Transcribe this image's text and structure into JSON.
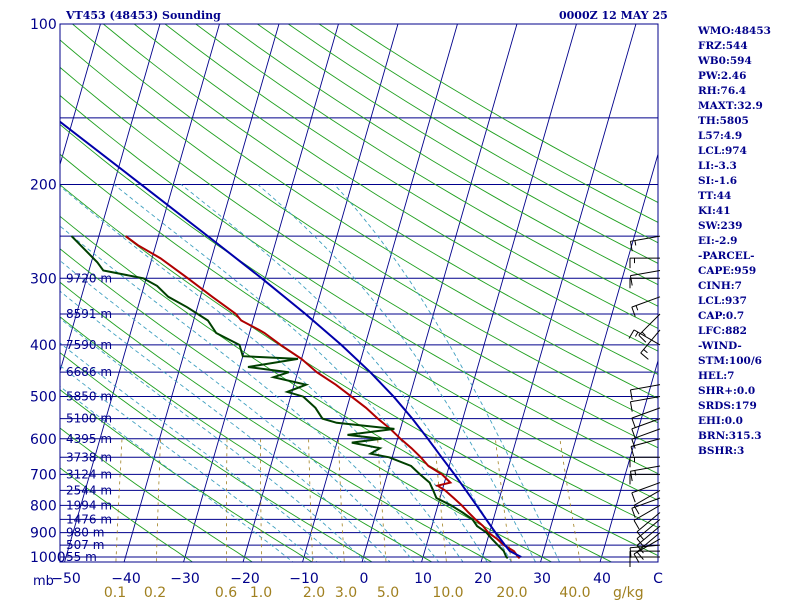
{
  "header": {
    "station": "VT453 (48453) Sounding",
    "time": "0000Z 12 MAY 25"
  },
  "indices": [
    "WMO:48453",
    "FRZ:544",
    "WB0:594",
    "PW:2.46",
    "RH:76.4",
    "MAXT:32.9",
    "TH:5805",
    "L57:4.9",
    "LCL:974",
    "LI:-3.3",
    "SI:-1.6",
    "TT:44",
    "KI:41",
    "SW:239",
    "EI:-2.9",
    "-PARCEL-",
    "CAPE:959",
    "CINH:7",
    "LCL:937",
    "CAP:0.7",
    "LFC:882",
    "-WIND-",
    "STM:100/6",
    "HEL:7",
    "SHR+:0.0",
    "SRDS:179",
    "EHI:0.0",
    "BRN:315.3",
    "BSHR:3"
  ],
  "chart_data": {
    "type": "line",
    "title": "VT453 (48453) Sounding",
    "x_unit_label": "mb",
    "pressure_ticks": [
      "100",
      "200",
      "300",
      "400",
      "500",
      "600",
      "700",
      "800",
      "900",
      "1000"
    ],
    "temperature_ticks": [
      "−50",
      "−40",
      "−30",
      "−20",
      "−10",
      "0",
      "10",
      "20",
      "30",
      "40",
      "C"
    ],
    "mixing_ratio_ticks": [
      "0.1",
      "0.2",
      "0.6",
      "1.0",
      "2.0",
      "3.0",
      "5.0",
      "10.0",
      "20.0",
      "40.0"
    ],
    "mixing_ratio_unit": "g/kg",
    "temperature_range": [
      -50,
      50
    ],
    "pressure_range": [
      100,
      1050
    ],
    "height_labels": [
      {
        "p": 300,
        "text": "9720 m"
      },
      {
        "p": 350,
        "text": "8591 m"
      },
      {
        "p": 400,
        "text": "7590 m"
      },
      {
        "p": 450,
        "text": "6686 m"
      },
      {
        "p": 500,
        "text": "5850 m"
      },
      {
        "p": 550,
        "text": "5100 m"
      },
      {
        "p": 600,
        "text": "4395 m"
      },
      {
        "p": 650,
        "text": "3738 m"
      },
      {
        "p": 700,
        "text": "3124 m"
      },
      {
        "p": 750,
        "text": "2544 m"
      },
      {
        "p": 800,
        "text": "1994 m"
      },
      {
        "p": 850,
        "text": "1476 m"
      },
      {
        "p": 900,
        "text": "980 m"
      },
      {
        "p": 950,
        "text": "507 m"
      },
      {
        "p": 1000,
        "text": "55 m"
      }
    ],
    "series": [
      {
        "color": "#b00000",
        "values": [
          {
            "p": 1005,
            "t": 26.3
          },
          {
            "p": 1000,
            "t": 26.0
          },
          {
            "p": 975,
            "t": 25.0
          },
          {
            "p": 950,
            "t": 23.0
          },
          {
            "p": 925,
            "t": 21.6
          },
          {
            "p": 900,
            "t": 19.8
          },
          {
            "p": 875,
            "t": 18.6
          },
          {
            "p": 850,
            "t": 17.0
          },
          {
            "p": 825,
            "t": 15.5
          },
          {
            "p": 800,
            "t": 14.0
          },
          {
            "p": 775,
            "t": 12.3
          },
          {
            "p": 750,
            "t": 10.5
          },
          {
            "p": 735,
            "t": 9.0
          },
          {
            "p": 725,
            "t": 11.0
          },
          {
            "p": 700,
            "t": 9.2
          },
          {
            "p": 675,
            "t": 6.5
          },
          {
            "p": 650,
            "t": 4.8
          },
          {
            "p": 625,
            "t": 2.8
          },
          {
            "p": 600,
            "t": 0.5
          },
          {
            "p": 575,
            "t": -1.7
          },
          {
            "p": 550,
            "t": -4.3
          },
          {
            "p": 525,
            "t": -6.8
          },
          {
            "p": 500,
            "t": -9.8
          },
          {
            "p": 475,
            "t": -13.0
          },
          {
            "p": 450,
            "t": -16.8
          },
          {
            "p": 425,
            "t": -20.0
          },
          {
            "p": 400,
            "t": -24.2
          },
          {
            "p": 380,
            "t": -27.5
          },
          {
            "p": 375,
            "t": -28.5
          },
          {
            "p": 360,
            "t": -32.0
          },
          {
            "p": 350,
            "t": -33.2
          },
          {
            "p": 325,
            "t": -38.0
          },
          {
            "p": 300,
            "t": -43.0
          },
          {
            "p": 275,
            "t": -48.6
          },
          {
            "p": 260,
            "t": -53.0
          },
          {
            "p": 250,
            "t": -55.5
          }
        ]
      },
      {
        "color": "#004000",
        "values": [
          {
            "p": 1005,
            "t": 24.3
          },
          {
            "p": 1000,
            "t": 24.0
          },
          {
            "p": 975,
            "t": 23.3
          },
          {
            "p": 950,
            "t": 22.0
          },
          {
            "p": 925,
            "t": 20.7
          },
          {
            "p": 900,
            "t": 19.5
          },
          {
            "p": 875,
            "t": 17.6
          },
          {
            "p": 850,
            "t": 16.5
          },
          {
            "p": 825,
            "t": 14.5
          },
          {
            "p": 800,
            "t": 12.2
          },
          {
            "p": 775,
            "t": 9.4
          },
          {
            "p": 750,
            "t": 8.5
          },
          {
            "p": 725,
            "t": 7.5
          },
          {
            "p": 700,
            "t": 5.5
          },
          {
            "p": 675,
            "t": 3.6
          },
          {
            "p": 650,
            "t": -0.5
          },
          {
            "p": 640,
            "t": -3.8
          },
          {
            "p": 625,
            "t": -2.5
          },
          {
            "p": 610,
            "t": -7.5
          },
          {
            "p": 600,
            "t": -2.7
          },
          {
            "p": 590,
            "t": -8.6
          },
          {
            "p": 575,
            "t": -1.0
          },
          {
            "p": 560,
            "t": -11.0
          },
          {
            "p": 550,
            "t": -13.6
          },
          {
            "p": 525,
            "t": -15.3
          },
          {
            "p": 500,
            "t": -17.9
          },
          {
            "p": 490,
            "t": -20.8
          },
          {
            "p": 475,
            "t": -18.0
          },
          {
            "p": 460,
            "t": -23.8
          },
          {
            "p": 450,
            "t": -21.5
          },
          {
            "p": 440,
            "t": -28.6
          },
          {
            "p": 425,
            "t": -20.6
          },
          {
            "p": 420,
            "t": -30.0
          },
          {
            "p": 400,
            "t": -31.1
          },
          {
            "p": 380,
            "t": -35.6
          },
          {
            "p": 360,
            "t": -37.6
          },
          {
            "p": 340,
            "t": -41.7
          },
          {
            "p": 325,
            "t": -45.4
          },
          {
            "p": 310,
            "t": -47.8
          },
          {
            "p": 300,
            "t": -50.5
          },
          {
            "p": 290,
            "t": -57.6
          },
          {
            "p": 280,
            "t": -59.0
          },
          {
            "p": 250,
            "t": -64.6
          }
        ]
      },
      {
        "color": "#0000aa",
        "values": [
          {
            "p": 1000,
            "t": 26.5
          },
          {
            "p": 975,
            "t": 24.3
          },
          {
            "p": 950,
            "t": 23.2
          },
          {
            "p": 900,
            "t": 21.0
          },
          {
            "p": 850,
            "t": 18.8
          },
          {
            "p": 800,
            "t": 16.5
          },
          {
            "p": 750,
            "t": 14.0
          },
          {
            "p": 700,
            "t": 11.3
          },
          {
            "p": 650,
            "t": 8.3
          },
          {
            "p": 600,
            "t": 5.1
          },
          {
            "p": 550,
            "t": 1.5
          },
          {
            "p": 500,
            "t": -2.7
          },
          {
            "p": 450,
            "t": -7.8
          },
          {
            "p": 400,
            "t": -14.0
          },
          {
            "p": 350,
            "t": -21.5
          },
          {
            "p": 300,
            "t": -30.6
          },
          {
            "p": 250,
            "t": -41.7
          },
          {
            "p": 200,
            "t": -55.4
          },
          {
            "p": 150,
            "t": -73.1
          },
          {
            "p": 110,
            "t": -92.5
          }
        ]
      }
    ],
    "wind_barbs": [
      {
        "p": 1000,
        "dir": 270,
        "spd": 10
      },
      {
        "p": 975,
        "dir": 270,
        "spd": 10
      },
      {
        "p": 950,
        "dir": 265,
        "spd": 10
      },
      {
        "p": 925,
        "dir": 240,
        "spd": 10
      },
      {
        "p": 900,
        "dir": 230,
        "spd": 10
      },
      {
        "p": 875,
        "dir": 230,
        "spd": 10
      },
      {
        "p": 850,
        "dir": 230,
        "spd": 10
      },
      {
        "p": 825,
        "dir": 230,
        "spd": 10
      },
      {
        "p": 800,
        "dir": 240,
        "spd": 10
      },
      {
        "p": 775,
        "dir": 250,
        "spd": 10
      },
      {
        "p": 750,
        "dir": 240,
        "spd": 10
      },
      {
        "p": 725,
        "dir": 250,
        "spd": 10
      },
      {
        "p": 700,
        "dir": 270,
        "spd": 10
      },
      {
        "p": 675,
        "dir": 260,
        "spd": 5
      },
      {
        "p": 650,
        "dir": 270,
        "spd": 5
      },
      {
        "p": 600,
        "dir": 255,
        "spd": 10
      },
      {
        "p": 575,
        "dir": 250,
        "spd": 10
      },
      {
        "p": 550,
        "dir": 250,
        "spd": 10
      },
      {
        "p": 525,
        "dir": 250,
        "spd": 10
      },
      {
        "p": 500,
        "dir": 260,
        "spd": 10
      },
      {
        "p": 475,
        "dir": 260,
        "spd": 10
      },
      {
        "p": 400,
        "dir": 300,
        "spd": 5
      },
      {
        "p": 375,
        "dir": 220,
        "spd": 5
      },
      {
        "p": 350,
        "dir": 225,
        "spd": 5
      },
      {
        "p": 325,
        "dir": 250,
        "spd": 5
      },
      {
        "p": 300,
        "dir": 270,
        "spd": 10
      },
      {
        "p": 290,
        "dir": 260,
        "spd": 10
      },
      {
        "p": 275,
        "dir": 270,
        "spd": 5
      },
      {
        "p": 250,
        "dir": 260,
        "spd": 5
      }
    ],
    "grid": true
  }
}
